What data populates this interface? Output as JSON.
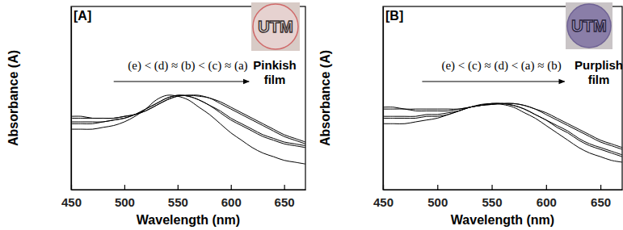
{
  "chart_data": [
    {
      "type": "line",
      "title": "[A]",
      "annotation": "(e) < (d) ≈ (b) < (c) ≈ (a)",
      "inset_text": "UTM",
      "note_lines": [
        "Pinkish",
        "film"
      ],
      "x_label": "Wavelength (nm)",
      "y_label": "Absorbance (A)",
      "x": [
        450,
        460,
        470,
        480,
        490,
        500,
        510,
        520,
        530,
        540,
        550,
        560,
        570,
        580,
        590,
        600,
        610,
        620,
        630,
        640,
        650,
        660,
        670
      ],
      "xlim": [
        450,
        670
      ],
      "xticks": [
        450,
        500,
        550,
        600,
        650
      ],
      "ylim": [
        0,
        1
      ],
      "yticks": [],
      "tick_labels": "x",
      "series": [
        {
          "color": "#000000",
          "values": [
            0.4,
            0.4,
            0.39,
            0.39,
            0.39,
            0.4,
            0.41,
            0.43,
            0.46,
            0.49,
            0.51,
            0.515,
            0.515,
            0.5,
            0.48,
            0.45,
            0.42,
            0.39,
            0.36,
            0.33,
            0.3,
            0.28,
            0.26
          ]
        },
        {
          "color": "#000000",
          "values": [
            0.37,
            0.37,
            0.37,
            0.37,
            0.38,
            0.39,
            0.41,
            0.44,
            0.47,
            0.5,
            0.515,
            0.51,
            0.49,
            0.46,
            0.43,
            0.39,
            0.36,
            0.33,
            0.3,
            0.28,
            0.26,
            0.25,
            0.24
          ]
        },
        {
          "color": "#000000",
          "values": [
            0.39,
            0.39,
            0.39,
            0.39,
            0.39,
            0.4,
            0.41,
            0.43,
            0.46,
            0.49,
            0.51,
            0.515,
            0.51,
            0.5,
            0.47,
            0.44,
            0.41,
            0.38,
            0.35,
            0.32,
            0.29,
            0.27,
            0.25
          ]
        },
        {
          "color": "#000000",
          "values": [
            0.36,
            0.36,
            0.36,
            0.37,
            0.38,
            0.39,
            0.41,
            0.44,
            0.47,
            0.5,
            0.515,
            0.51,
            0.49,
            0.46,
            0.42,
            0.38,
            0.35,
            0.32,
            0.29,
            0.27,
            0.25,
            0.24,
            0.23
          ]
        },
        {
          "color": "#000000",
          "values": [
            0.33,
            0.33,
            0.33,
            0.34,
            0.35,
            0.37,
            0.4,
            0.44,
            0.49,
            0.515,
            0.51,
            0.49,
            0.45,
            0.41,
            0.36,
            0.31,
            0.27,
            0.23,
            0.2,
            0.18,
            0.16,
            0.15,
            0.14
          ]
        }
      ]
    },
    {
      "type": "line",
      "title": "[B]",
      "annotation": "(e) < (c) ≈ (d) < (a) ≈ (b)",
      "inset_text": "UTM",
      "note_lines": [
        "Purplish",
        "film"
      ],
      "x_label": "Wavelength (nm)",
      "y_label": "Absorbance (A)",
      "x": [
        450,
        460,
        470,
        480,
        490,
        500,
        510,
        520,
        530,
        540,
        550,
        560,
        570,
        580,
        590,
        600,
        610,
        620,
        630,
        640,
        650,
        660,
        670
      ],
      "xlim": [
        450,
        670
      ],
      "xticks": [
        450,
        500,
        550,
        600,
        650
      ],
      "ylim": [
        0,
        1
      ],
      "yticks": [],
      "tick_labels": "x",
      "series": [
        {
          "color": "#000000",
          "values": [
            0.45,
            0.45,
            0.44,
            0.44,
            0.44,
            0.44,
            0.44,
            0.44,
            0.45,
            0.46,
            0.465,
            0.47,
            0.47,
            0.46,
            0.44,
            0.41,
            0.38,
            0.35,
            0.32,
            0.29,
            0.26,
            0.24,
            0.22
          ]
        },
        {
          "color": "#000000",
          "values": [
            0.44,
            0.44,
            0.44,
            0.43,
            0.43,
            0.43,
            0.43,
            0.44,
            0.45,
            0.46,
            0.465,
            0.47,
            0.47,
            0.46,
            0.44,
            0.42,
            0.39,
            0.36,
            0.33,
            0.3,
            0.27,
            0.25,
            0.23
          ]
        },
        {
          "color": "#000000",
          "values": [
            0.4,
            0.4,
            0.4,
            0.4,
            0.41,
            0.41,
            0.42,
            0.43,
            0.45,
            0.46,
            0.47,
            0.47,
            0.46,
            0.44,
            0.41,
            0.38,
            0.34,
            0.31,
            0.27,
            0.24,
            0.22,
            0.2,
            0.18
          ]
        },
        {
          "color": "#000000",
          "values": [
            0.39,
            0.39,
            0.39,
            0.39,
            0.4,
            0.4,
            0.41,
            0.43,
            0.45,
            0.46,
            0.47,
            0.47,
            0.46,
            0.44,
            0.41,
            0.38,
            0.35,
            0.32,
            0.28,
            0.25,
            0.23,
            0.21,
            0.19
          ]
        },
        {
          "color": "#000000",
          "values": [
            0.36,
            0.36,
            0.36,
            0.37,
            0.38,
            0.39,
            0.41,
            0.43,
            0.45,
            0.465,
            0.47,
            0.465,
            0.45,
            0.42,
            0.39,
            0.35,
            0.31,
            0.27,
            0.23,
            0.2,
            0.18,
            0.16,
            0.15
          ]
        }
      ]
    }
  ]
}
